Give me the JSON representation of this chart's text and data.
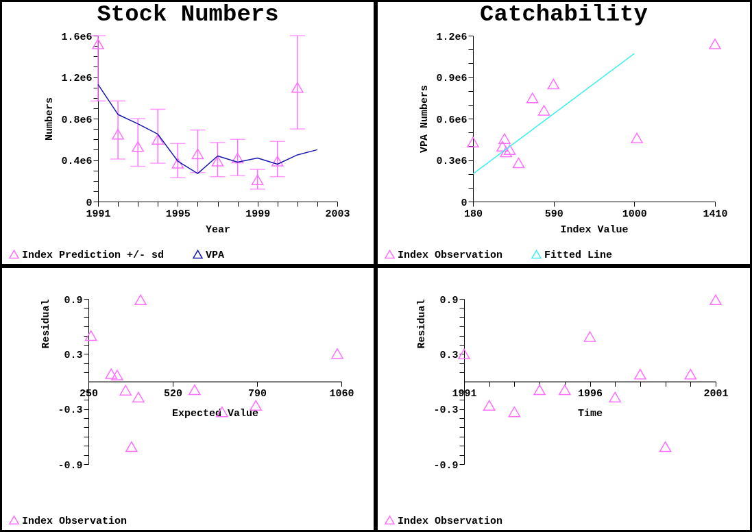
{
  "chart_data": [
    {
      "type": "scatter",
      "title": "Stock Numbers",
      "xlabel": "Year",
      "ylabel": "Numbers",
      "legend": "bottom",
      "xlim": [
        1991,
        2003
      ],
      "xticks": [
        1991,
        {
          "value": 1992,
          "label": null
        },
        {
          "value": 1993,
          "label": null
        },
        {
          "value": 1994,
          "label": null
        },
        1995,
        {
          "value": 1996,
          "label": null
        },
        {
          "value": 1997,
          "label": null
        },
        {
          "value": 1998,
          "label": null
        },
        1999,
        {
          "value": 2000,
          "label": null
        },
        {
          "value": 2001,
          "label": null
        },
        {
          "value": 2002,
          "label": null
        },
        2003
      ],
      "ylim": [
        0,
        1600000
      ],
      "yticks": [
        0,
        {
          "value": 100000,
          "label": null
        },
        {
          "value": 200000,
          "label": null
        },
        {
          "value": 300000,
          "label": null
        },
        {
          "value": 400000,
          "label": "0.4e6"
        },
        {
          "value": 500000,
          "label": null
        },
        {
          "value": 600000,
          "label": null
        },
        {
          "value": 700000,
          "label": null
        },
        {
          "value": 800000,
          "label": "0.8e6"
        },
        {
          "value": 900000,
          "label": null
        },
        {
          "value": 1000000,
          "label": null
        },
        {
          "value": 1100000,
          "label": null
        },
        {
          "value": 1200000,
          "label": "1.2e6"
        },
        {
          "value": 1300000,
          "label": null
        },
        {
          "value": 1400000,
          "label": null
        },
        {
          "value": 1500000,
          "label": null
        },
        {
          "value": 1600000,
          "label": "1.6e6"
        }
      ],
      "series": [
        {
          "name": "Index Prediction +/- sd",
          "marker": "triangle",
          "color": "#ff70ff",
          "x": [
            1991,
            1992,
            1993,
            1994,
            1995,
            1996,
            1997,
            1998,
            1999,
            2000,
            2001
          ],
          "values": [
            1520000,
            650000,
            530000,
            600000,
            370000,
            460000,
            390000,
            420000,
            210000,
            390000,
            1100000
          ],
          "errors": [
            [
              970000,
              1600000
            ],
            [
              410000,
              970000
            ],
            [
              340000,
              800000
            ],
            [
              370000,
              890000
            ],
            [
              230000,
              560000
            ],
            [
              280000,
              690000
            ],
            [
              240000,
              570000
            ],
            [
              250000,
              600000
            ],
            [
              120000,
              310000
            ],
            [
              240000,
              580000
            ],
            [
              700000,
              1600000
            ]
          ]
        },
        {
          "name": "VPA",
          "type": "line",
          "color": "#1818b0",
          "line_style": "solid",
          "x": [
            1991,
            1992,
            1993,
            1994,
            1995,
            1996,
            1997,
            1998,
            1999,
            2000,
            2001,
            2002
          ],
          "values": [
            1130000,
            840000,
            750000,
            650000,
            390000,
            270000,
            440000,
            380000,
            420000,
            360000,
            450000,
            500000
          ]
        }
      ]
    },
    {
      "type": "scatter",
      "title": "Catchability",
      "xlabel": "Index Value",
      "ylabel": "VPA Numbers",
      "legend": "bottom",
      "xlim": [
        180,
        1410
      ],
      "xticks": [
        180,
        590,
        1000,
        1410
      ],
      "ylim": [
        0,
        1200000
      ],
      "yticks": [
        0,
        {
          "value": 100000,
          "label": null
        },
        {
          "value": 200000,
          "label": null
        },
        {
          "value": 300000,
          "label": "0.3e6"
        },
        {
          "value": 400000,
          "label": null
        },
        {
          "value": 500000,
          "label": null
        },
        {
          "value": 600000,
          "label": "0.6e6"
        },
        {
          "value": 700000,
          "label": null
        },
        {
          "value": 800000,
          "label": null
        },
        {
          "value": 900000,
          "label": "0.9e6"
        },
        {
          "value": 1000000,
          "label": null
        },
        {
          "value": 1100000,
          "label": null
        },
        {
          "value": 1200000,
          "label": "1.2e6"
        }
      ],
      "series": [
        {
          "name": "Index Observation",
          "marker": "triangle",
          "color": "#ff70ff",
          "x": [
            180,
            340,
            330,
            348,
            367,
            412,
            482,
            541,
            589,
            1013,
            1410
          ],
          "values": [
            430000,
            455000,
            400000,
            360000,
            375000,
            280000,
            750000,
            660000,
            850000,
            460000,
            1140000
          ]
        },
        {
          "name": "Fitted Line",
          "type": "line",
          "color": "#40f0f0",
          "line_style": "solid",
          "x": [
            180,
            1000
          ],
          "values": [
            200000,
            1070000
          ]
        }
      ]
    },
    {
      "type": "scatter",
      "xlabel": "Expected Value",
      "ylabel": "Residual",
      "marker": "triangle",
      "legend": "bottom",
      "xlim": [
        250,
        1060
      ],
      "xticks": [
        250,
        520,
        790,
        1060
      ],
      "ylim": [
        -0.9,
        0.9
      ],
      "yticks": [
        -0.9,
        {
          "value": -0.8,
          "label": null
        },
        {
          "value": -0.7,
          "label": null
        },
        {
          "value": -0.6,
          "label": null
        },
        {
          "value": -0.5,
          "label": null
        },
        {
          "value": -0.4,
          "label": null
        },
        -0.3,
        {
          "value": -0.2,
          "label": null
        },
        {
          "value": -0.1,
          "label": null
        },
        {
          "value": 0.1,
          "label": null
        },
        {
          "value": 0.2,
          "label": null
        },
        0.3,
        {
          "value": 0.4,
          "label": null
        },
        {
          "value": 0.5,
          "label": null
        },
        {
          "value": 0.6,
          "label": null
        },
        {
          "value": 0.7,
          "label": null
        },
        {
          "value": 0.8,
          "label": null
        },
        0.9
      ],
      "series": [
        {
          "name": "Index Observation",
          "color": "#ff70ff",
          "x": [
            258,
            417,
            323,
            342,
            369,
            410,
            590,
            678,
            786,
            388,
            1047
          ],
          "values": [
            0.5,
            0.89,
            0.085,
            0.07,
            -0.095,
            -0.17,
            -0.09,
            -0.33,
            -0.26,
            -0.71,
            0.305
          ]
        }
      ]
    },
    {
      "type": "scatter",
      "xlabel": "Time",
      "ylabel": "Residual",
      "marker": "triangle",
      "legend": "bottom",
      "xlim": [
        1991,
        2001
      ],
      "xticks": [
        1991,
        {
          "value": 1992,
          "label": null
        },
        {
          "value": 1993,
          "label": null
        },
        {
          "value": 1994,
          "label": null
        },
        {
          "value": 1995,
          "label": null
        },
        1996,
        {
          "value": 1997,
          "label": null
        },
        {
          "value": 1998,
          "label": null
        },
        {
          "value": 1999,
          "label": null
        },
        {
          "value": 2000,
          "label": null
        },
        2001
      ],
      "ylim": [
        -0.9,
        0.9
      ],
      "yticks": [
        -0.9,
        {
          "value": -0.8,
          "label": null
        },
        {
          "value": -0.7,
          "label": null
        },
        {
          "value": -0.6,
          "label": null
        },
        {
          "value": -0.5,
          "label": null
        },
        {
          "value": -0.4,
          "label": null
        },
        -0.3,
        {
          "value": -0.2,
          "label": null
        },
        {
          "value": -0.1,
          "label": null
        },
        {
          "value": 0.1,
          "label": null
        },
        {
          "value": 0.2,
          "label": null
        },
        0.3,
        {
          "value": 0.4,
          "label": null
        },
        {
          "value": 0.5,
          "label": null
        },
        {
          "value": 0.6,
          "label": null
        },
        {
          "value": 0.7,
          "label": null
        },
        {
          "value": 0.8,
          "label": null
        },
        0.9
      ],
      "series": [
        {
          "name": "Index Observation",
          "color": "#ff70ff",
          "x": [
            1991,
            1992,
            1993,
            1994,
            1995,
            1996,
            1997,
            1998,
            1999,
            2000,
            2001
          ],
          "values": [
            0.3,
            -0.26,
            -0.33,
            -0.09,
            -0.09,
            0.49,
            -0.17,
            0.08,
            -0.71,
            0.08,
            0.89
          ]
        }
      ]
    }
  ]
}
